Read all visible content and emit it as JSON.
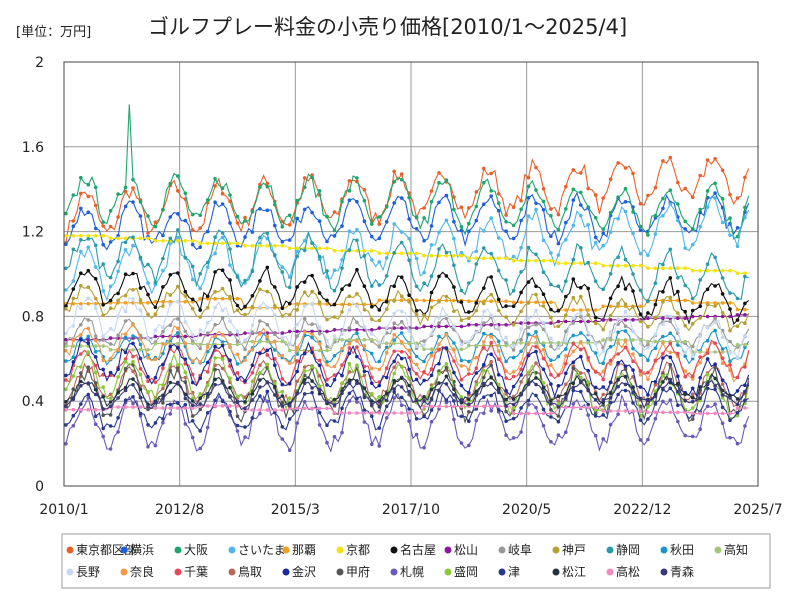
{
  "chart_data": {
    "type": "line",
    "title": "ゴルフプレー料金の小売り価格[2010/1～2025/4]",
    "unit_label": "[単位：万円]",
    "xlabel": "",
    "ylabel": "",
    "xlim": [
      0,
      186
    ],
    "ylim": [
      0,
      2
    ],
    "y_ticks": [
      "0",
      "0.4",
      "0.8",
      "1.2",
      "1.6",
      "2"
    ],
    "x_ticks": [
      {
        "label": "2010/1",
        "index": 0
      },
      {
        "label": "2012/8",
        "index": 31
      },
      {
        "label": "2015/3",
        "index": 62
      },
      {
        "label": "2017/10",
        "index": 93
      },
      {
        "label": "2020/5",
        "index": 124
      },
      {
        "label": "2022/12",
        "index": 155
      },
      {
        "label": "2025/7",
        "index": 186
      }
    ],
    "grid": true,
    "legend_position": "bottom",
    "n_points": 184,
    "series": [
      {
        "name": "東京都区部",
        "color": "#e8602a",
        "base": 1.28,
        "amp": 0.1,
        "shape": "season",
        "trend": 0.18
      },
      {
        "name": "横浜",
        "color": "#1f5fd8",
        "base": 1.22,
        "amp": 0.09,
        "shape": "season",
        "trend": 0.06
      },
      {
        "name": "大阪",
        "color": "#1fa56e",
        "base": 1.36,
        "amp": 0.1,
        "shape": "season",
        "trend": -0.06,
        "spike_index": 17,
        "spike_value": 1.8
      },
      {
        "name": "さいたま",
        "color": "#4fb8e8",
        "base": 1.0,
        "amp": 0.1,
        "shape": "season",
        "trend": 0.25
      },
      {
        "name": "那覇",
        "color": "#f0a020",
        "base": 0.86,
        "amp": 0.03,
        "shape": "step",
        "trend": 0.0
      },
      {
        "name": "京都",
        "color": "#f5e210",
        "base": 1.18,
        "amp": 0.0,
        "shape": "step",
        "trend": -0.18
      },
      {
        "name": "名古屋",
        "color": "#111111",
        "base": 0.95,
        "amp": 0.08,
        "shape": "season",
        "trend": -0.08
      },
      {
        "name": "松山",
        "color": "#8a1a9a",
        "base": 0.69,
        "amp": 0.0,
        "shape": "step",
        "trend": 0.12
      },
      {
        "name": "岐阜",
        "color": "#999999",
        "base": 0.72,
        "amp": 0.06,
        "shape": "season",
        "trend": 0.0
      },
      {
        "name": "神戸",
        "color": "#b5a032",
        "base": 0.88,
        "amp": 0.06,
        "shape": "season",
        "trend": -0.08
      },
      {
        "name": "静岡",
        "color": "#2a9aa8",
        "base": 1.1,
        "amp": 0.1,
        "shape": "season",
        "trend": -0.12
      },
      {
        "name": "秋田",
        "color": "#1a96c8",
        "base": 0.64,
        "amp": 0.06,
        "shape": "season",
        "trend": 0.02
      },
      {
        "name": "高知",
        "color": "#a5c57a",
        "base": 0.66,
        "amp": 0.03,
        "shape": "step",
        "trend": 0.0
      },
      {
        "name": "長野",
        "color": "#c8d8f0",
        "base": 0.8,
        "amp": 0.08,
        "shape": "season",
        "trend": -0.1
      },
      {
        "name": "奈良",
        "color": "#f09a4a",
        "base": 0.68,
        "amp": 0.07,
        "shape": "season",
        "trend": -0.1
      },
      {
        "name": "千葉",
        "color": "#e24a5a",
        "base": 0.56,
        "amp": 0.07,
        "shape": "season",
        "trend": 0.04
      },
      {
        "name": "鳥取",
        "color": "#b8685a",
        "base": 0.48,
        "amp": 0.08,
        "shape": "season",
        "trend": 0.0
      },
      {
        "name": "金沢",
        "color": "#1a2a9a",
        "base": 0.6,
        "amp": 0.08,
        "shape": "season",
        "trend": -0.1
      },
      {
        "name": "甲府",
        "color": "#555555",
        "base": 0.44,
        "amp": 0.1,
        "shape": "season",
        "trend": 0.0
      },
      {
        "name": "札幌",
        "color": "#6a5ab8",
        "base": 0.3,
        "amp": 0.1,
        "shape": "season",
        "trend": 0.0
      },
      {
        "name": "盛岡",
        "color": "#8ac83a",
        "base": 0.52,
        "amp": 0.09,
        "shape": "season",
        "trend": -0.1
      },
      {
        "name": "津",
        "color": "#2a3a8a",
        "base": 0.34,
        "amp": 0.07,
        "shape": "season",
        "trend": 0.05
      },
      {
        "name": "松江",
        "color": "#223344",
        "base": 0.44,
        "amp": 0.05,
        "shape": "season",
        "trend": 0.02
      },
      {
        "name": "高松",
        "color": "#f08ac0",
        "base": 0.36,
        "amp": 0.02,
        "shape": "step",
        "trend": 0.0
      },
      {
        "name": "青森",
        "color": "#3a3a7a",
        "base": 0.42,
        "amp": 0.05,
        "shape": "season",
        "trend": 0.02
      }
    ]
  }
}
